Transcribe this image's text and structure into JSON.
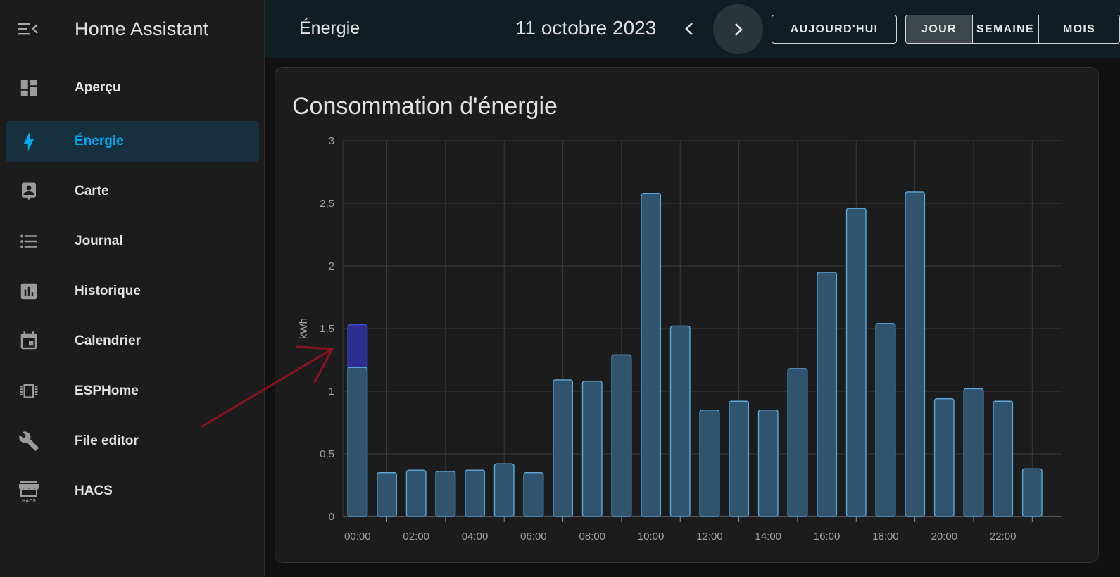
{
  "app": {
    "title": "Home Assistant"
  },
  "sidebar": {
    "items": [
      {
        "label": "Aperçu",
        "icon": "dashboard-icon"
      },
      {
        "label": "Énergie",
        "icon": "lightning-bolt-icon",
        "active": true
      },
      {
        "label": "Carte",
        "icon": "map-person-icon"
      },
      {
        "label": "Journal",
        "icon": "list-icon"
      },
      {
        "label": "Historique",
        "icon": "chart-box-icon"
      },
      {
        "label": "Calendrier",
        "icon": "calendar-icon"
      },
      {
        "label": "ESPHome",
        "icon": "chip-icon"
      },
      {
        "label": "File editor",
        "icon": "wrench-icon"
      },
      {
        "label": "HACS",
        "icon": "hacs-store-icon"
      }
    ]
  },
  "header": {
    "page_title": "Énergie",
    "date": "11 octobre 2023",
    "today_label": "AUJOURD'HUI",
    "day_label": "JOUR",
    "week_label": "SEMAINE",
    "month_label": "MOIS"
  },
  "card": {
    "title": "Consommation d'énergie"
  },
  "colors": {
    "bar_fill": "#30536e",
    "bar_stroke": "#5aa9df",
    "highlight_fill": "#2c2f8f",
    "annotation_arrow": "#8b1220",
    "accent": "#03a9f4"
  },
  "chart_data": {
    "type": "bar",
    "ylabel": "kWh",
    "ylim": [
      0,
      3
    ],
    "yticks": [
      "0",
      "0,5",
      "1",
      "1,5",
      "2",
      "2,5",
      "3"
    ],
    "grid": true,
    "x_tick_labels": [
      "00:00",
      "02:00",
      "04:00",
      "06:00",
      "08:00",
      "10:00",
      "12:00",
      "14:00",
      "16:00",
      "18:00",
      "20:00",
      "22:00"
    ],
    "categories": [
      "00:00",
      "01:00",
      "02:00",
      "03:00",
      "04:00",
      "05:00",
      "06:00",
      "07:00",
      "08:00",
      "09:00",
      "10:00",
      "11:00",
      "12:00",
      "13:00",
      "14:00",
      "15:00",
      "16:00",
      "17:00",
      "18:00",
      "19:00",
      "20:00",
      "21:00",
      "22:00",
      "23:00"
    ],
    "series": [
      {
        "values": [
          1.19,
          0.35,
          0.37,
          0.36,
          0.37,
          0.42,
          0.35,
          1.09,
          1.08,
          1.29,
          2.58,
          1.52,
          0.85,
          0.92,
          0.85,
          1.18,
          1.95,
          2.46,
          1.54,
          2.59,
          0.94,
          1.02,
          0.92,
          0.38
        ]
      },
      {
        "values": [
          0.34,
          0,
          0,
          0,
          0,
          0,
          0,
          0,
          0,
          0,
          0,
          0,
          0,
          0,
          0,
          0,
          0,
          0,
          0,
          0,
          0,
          0,
          0,
          0
        ]
      }
    ]
  }
}
